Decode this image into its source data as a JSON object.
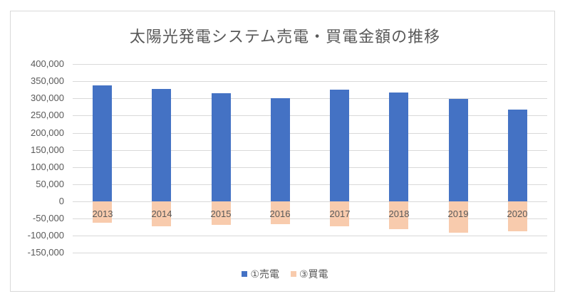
{
  "chart_data": {
    "type": "bar",
    "title": "太陽光発電システム売電・買電金額の推移",
    "categories": [
      "2013",
      "2014",
      "2015",
      "2016",
      "2017",
      "2018",
      "2019",
      "2020"
    ],
    "series": [
      {
        "name": "①売電",
        "color": "#4472C4",
        "values": [
          338000,
          327000,
          316000,
          301000,
          326000,
          318000,
          298000,
          267000
        ]
      },
      {
        "name": "③買電",
        "color": "#F8CBAD",
        "values": [
          -62000,
          -73000,
          -68000,
          -66000,
          -73000,
          -81000,
          -92000,
          -87000
        ]
      }
    ],
    "xlabel": "",
    "ylabel": "",
    "ylim": [
      -150000,
      400000
    ],
    "yticks": [
      400000,
      350000,
      300000,
      250000,
      200000,
      150000,
      100000,
      50000,
      0,
      -50000,
      -100000,
      -150000
    ],
    "ytick_labels": [
      "400,000",
      "350,000",
      "300,000",
      "250,000",
      "200,000",
      "150,000",
      "100,000",
      "50,000",
      "0",
      "-50,000",
      "-100,000",
      "-150,000"
    ],
    "grid": true,
    "legend_position": "bottom",
    "stacked": true
  }
}
